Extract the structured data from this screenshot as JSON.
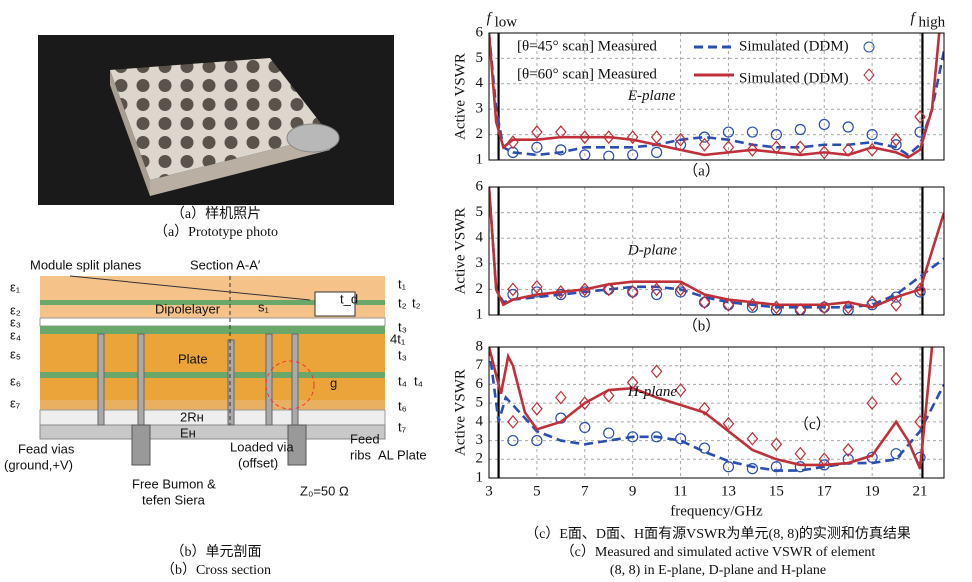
{
  "captions": {
    "a_cn": "（a）样机照片",
    "a_en": "（a）Prototype photo",
    "b_cn": "（b）单元剖面",
    "b_en": "（b）Cross section",
    "c_cn": "（c）E面、D面、H面有源VSWR为单元(8, 8)的实测和仿真结果",
    "c_en1": "（c）Measured and simulated active VSWR of element",
    "c_en2": "(8, 8) in E-plane, D-plane and H-plane"
  },
  "cross_section": {
    "labels": [
      "Module split planes",
      "Section A-A′",
      "Dipolelayer",
      "s₁",
      "Plate",
      "ε₁",
      "ε₂",
      "ε₃",
      "ε₄",
      "ε₅",
      "ε₆",
      "ε₇",
      "t₁",
      "t₂",
      "t₂",
      "t₃",
      "4t₁",
      "t₃",
      "t₄",
      "t₄",
      "t₆",
      "t₇",
      "Fead vias",
      "(ground,+V)",
      "2Rн",
      "Eн",
      "Free Bumon &",
      "tefen Siera",
      "Loaded via",
      "(offset)",
      "g",
      "Feed",
      "ribs",
      "Z₀=50 Ω",
      "AL Plate",
      "t_d"
    ]
  },
  "chart_data": [
    {
      "type": "line",
      "y_label": "Active VSWR",
      "plane_label": "E-plane",
      "panel_label": "（a）",
      "xlim": [
        3,
        22
      ],
      "ylim": [
        1,
        6
      ],
      "xticks": [
        3,
        5,
        7,
        9,
        11,
        13,
        15,
        17,
        19,
        21
      ],
      "yticks": [
        1,
        2,
        3,
        4,
        5,
        6
      ],
      "show_x_tick_labels": false,
      "grid": true,
      "legend": true,
      "vlines": [
        3.4,
        21.1
      ],
      "vline_labels": [
        {
          "text": "f",
          "sub": "low"
        },
        {
          "text": "f",
          "sub": "high"
        }
      ],
      "series": [
        {
          "name": "[θ=45° scan] Measured",
          "color": "#2a4fb0",
          "style": "circle",
          "x": [
            4,
            5,
            6,
            7,
            8,
            9,
            10,
            11,
            12,
            13,
            14,
            15,
            16,
            17,
            18,
            19,
            20,
            21
          ],
          "values": [
            1.3,
            1.5,
            1.4,
            1.2,
            1.15,
            1.2,
            1.3,
            1.6,
            1.9,
            2.1,
            2.1,
            2.0,
            2.2,
            2.4,
            2.3,
            2.0,
            1.6,
            2.1
          ]
        },
        {
          "name": "Simulated (DDM)",
          "color": "#2a4fb0",
          "style": "dash",
          "x": [
            3,
            3.3,
            3.6,
            4,
            5,
            6,
            7,
            8,
            9,
            10,
            11,
            12,
            13,
            14,
            15,
            16,
            17,
            18,
            19,
            20,
            20.5,
            21,
            21.5,
            22
          ],
          "values": [
            6,
            3,
            1.5,
            1.3,
            1.2,
            1.3,
            1.5,
            1.5,
            1.5,
            1.6,
            1.8,
            1.9,
            1.8,
            1.6,
            1.5,
            1.5,
            1.6,
            1.6,
            1.7,
            1.5,
            1.2,
            1.6,
            3,
            5.3
          ]
        },
        {
          "name": "[θ=60° scan] Measured",
          "color": "#c0303a",
          "style": "diamond",
          "x": [
            4,
            5,
            6,
            7,
            8,
            9,
            10,
            11,
            12,
            13,
            14,
            15,
            16,
            17,
            18,
            19,
            20,
            21
          ],
          "values": [
            1.7,
            2.1,
            2.1,
            1.9,
            1.9,
            1.9,
            1.9,
            1.8,
            1.6,
            1.5,
            1.4,
            1.5,
            1.5,
            1.3,
            1.4,
            1.4,
            1.8,
            2.7
          ]
        },
        {
          "name": "Simulated (DDM)",
          "color": "#c0303a",
          "style": "solid",
          "x": [
            3,
            3.3,
            3.6,
            4,
            5,
            6,
            7,
            8,
            9,
            10,
            11,
            12,
            13,
            14,
            15,
            16,
            17,
            18,
            19,
            20,
            20.5,
            21,
            21.5,
            21.8
          ],
          "values": [
            6,
            2.5,
            1.5,
            1.8,
            1.8,
            1.9,
            1.9,
            1.9,
            1.8,
            1.6,
            1.4,
            1.2,
            1.3,
            1.4,
            1.3,
            1.2,
            1.3,
            1.2,
            1.5,
            1.3,
            1.1,
            1.4,
            3,
            6
          ]
        }
      ]
    },
    {
      "type": "line",
      "y_label": "Active VSWR",
      "plane_label": "D-plane",
      "panel_label": "（b）",
      "xlim": [
        3,
        22
      ],
      "ylim": [
        1,
        6
      ],
      "xticks": [
        3,
        5,
        7,
        9,
        11,
        13,
        15,
        17,
        19,
        21
      ],
      "yticks": [
        1,
        2,
        3,
        4,
        5,
        6
      ],
      "show_x_tick_labels": false,
      "grid": true,
      "legend": false,
      "vlines": [
        3.4,
        21.1
      ],
      "series": [
        {
          "name": "[θ=45° scan] Measured",
          "color": "#2a4fb0",
          "style": "circle",
          "x": [
            4,
            5,
            6,
            7,
            8,
            9,
            10,
            11,
            12,
            13,
            14,
            15,
            16,
            17,
            18,
            19,
            20,
            21
          ],
          "values": [
            1.8,
            1.9,
            1.8,
            1.9,
            2.0,
            1.9,
            1.8,
            1.9,
            1.5,
            1.4,
            1.3,
            1.2,
            1.2,
            1.3,
            1.2,
            1.4,
            1.7,
            1.9
          ]
        },
        {
          "name": "Simulated (DDM)",
          "color": "#2a4fb0",
          "style": "dash",
          "x": [
            3,
            3.3,
            3.6,
            4,
            5,
            6,
            7,
            8,
            9,
            10,
            11,
            12,
            13,
            14,
            15,
            16,
            17,
            18,
            19,
            20,
            21,
            22
          ],
          "values": [
            6,
            2,
            1.5,
            1.6,
            1.7,
            1.8,
            1.9,
            2.0,
            2.1,
            2.1,
            2.0,
            1.7,
            1.5,
            1.4,
            1.3,
            1.3,
            1.3,
            1.3,
            1.4,
            1.8,
            2.5,
            3.2
          ]
        },
        {
          "name": "[θ=60° scan] Measured",
          "color": "#c0303a",
          "style": "diamond",
          "x": [
            4,
            5,
            6,
            7,
            8,
            9,
            10,
            11,
            12,
            13,
            14,
            15,
            16,
            17,
            18,
            19,
            20,
            21
          ],
          "values": [
            2.0,
            2.1,
            1.9,
            2.0,
            2.0,
            1.9,
            2.0,
            2.0,
            1.5,
            1.4,
            1.4,
            1.3,
            1.2,
            1.3,
            1.3,
            1.5,
            1.4,
            2.0
          ]
        },
        {
          "name": "Simulated (DDM)",
          "color": "#c0303a",
          "style": "solid",
          "x": [
            3,
            3.3,
            3.6,
            4,
            5,
            6,
            7,
            8,
            9,
            10,
            11,
            12,
            13,
            14,
            15,
            16,
            17,
            18,
            19,
            20,
            21,
            21.5,
            22
          ],
          "values": [
            6,
            2,
            1.4,
            1.6,
            1.8,
            1.9,
            2.0,
            2.2,
            2.3,
            2.3,
            2.3,
            1.8,
            1.6,
            1.5,
            1.4,
            1.4,
            1.4,
            1.5,
            1.3,
            1.7,
            2.0,
            3.5,
            5
          ]
        }
      ]
    },
    {
      "type": "line",
      "y_label": "Active VSWR",
      "x_label": "frequency/GHz",
      "plane_label": "H-plane",
      "panel_label": "（c）",
      "xlim": [
        3,
        22
      ],
      "ylim": [
        1,
        8
      ],
      "xticks": [
        3,
        5,
        7,
        9,
        11,
        13,
        15,
        17,
        19,
        21
      ],
      "yticks": [
        1,
        2,
        3,
        4,
        5,
        6,
        7,
        8
      ],
      "show_x_tick_labels": true,
      "grid": true,
      "legend": false,
      "vlines": [
        3.4,
        21.1
      ],
      "series": [
        {
          "name": "[θ=45° scan] Measured",
          "color": "#2a4fb0",
          "style": "circle",
          "x": [
            4,
            5,
            6,
            7,
            8,
            9,
            10,
            11,
            12,
            13,
            14,
            15,
            16,
            17,
            18,
            19,
            20,
            21
          ],
          "values": [
            3.0,
            3.0,
            4.2,
            3.7,
            3.4,
            3.2,
            3.2,
            3.1,
            2.6,
            1.6,
            1.5,
            1.6,
            1.6,
            1.7,
            2.0,
            2.1,
            2.3,
            2.1
          ]
        },
        {
          "name": "Simulated (DDM)",
          "color": "#2a4fb0",
          "style": "dash",
          "x": [
            3,
            3.4,
            3.7,
            4,
            5,
            6,
            7,
            8,
            9,
            10,
            11,
            12,
            13,
            14,
            15,
            16,
            17,
            18,
            19,
            20,
            21,
            22
          ],
          "values": [
            8,
            4,
            5.3,
            4.9,
            3.5,
            3,
            2.8,
            3.0,
            3.2,
            3.2,
            3.0,
            2.4,
            1.9,
            1.6,
            1.4,
            1.4,
            1.6,
            1.8,
            1.8,
            2.0,
            3.5,
            6
          ]
        },
        {
          "name": "[θ=60° scan] Measured",
          "color": "#c0303a",
          "style": "diamond",
          "x": [
            4,
            5,
            6,
            7,
            8,
            9,
            10,
            11,
            12,
            13,
            14,
            15,
            16,
            17,
            18,
            19,
            20,
            21
          ],
          "values": [
            4.0,
            4.7,
            5.3,
            5.0,
            5.4,
            6.1,
            6.7,
            5.7,
            4.7,
            3.9,
            3.1,
            2.8,
            2.3,
            2.0,
            2.5,
            5.0,
            6.3,
            4.0
          ]
        },
        {
          "name": "Simulated (DDM)",
          "color": "#c0303a",
          "style": "solid",
          "x": [
            3,
            3.5,
            3.8,
            4,
            4.5,
            5,
            6,
            7,
            8,
            9,
            10,
            11,
            12,
            13,
            14,
            15,
            16,
            17,
            18,
            19,
            20,
            20.5,
            21,
            21.5
          ],
          "values": [
            8,
            5.5,
            7.5,
            7,
            4.5,
            3.6,
            4,
            5,
            5.7,
            5.8,
            5.3,
            4.9,
            4.5,
            3.5,
            2.5,
            2,
            1.7,
            1.7,
            1.8,
            2.2,
            4,
            3,
            1.5,
            8
          ]
        }
      ]
    }
  ]
}
